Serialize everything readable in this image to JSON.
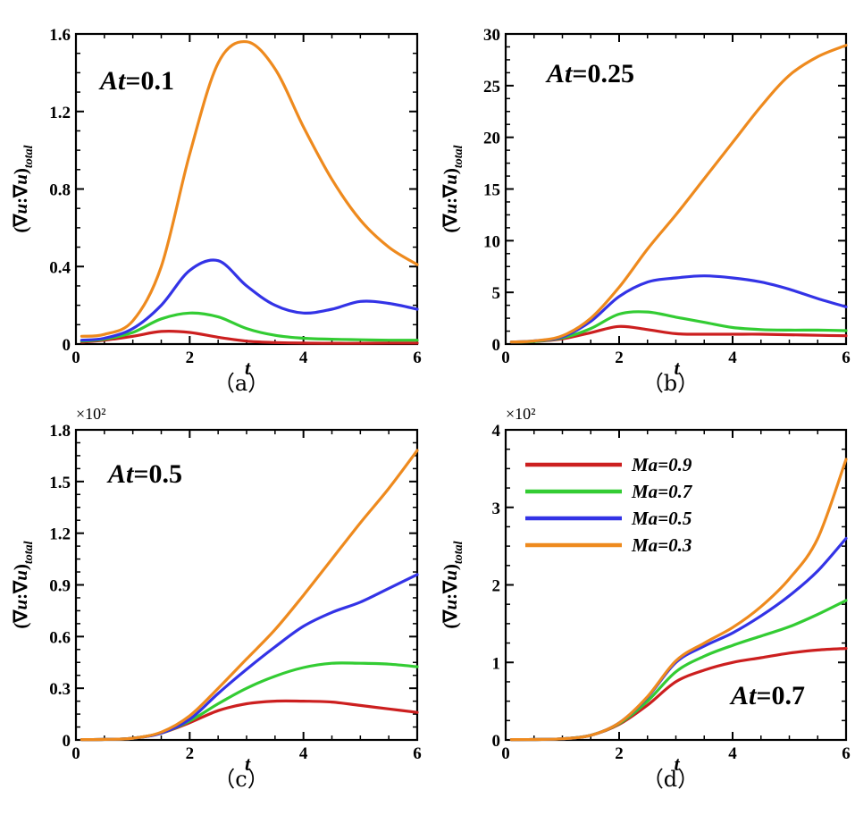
{
  "figure": {
    "x_symbol": "t",
    "y_label_prefix": "(∇",
    "y_label_u1": "u",
    "y_label_colon": ":∇",
    "y_label_u2": "u",
    "y_label_close": ")",
    "y_label_sub": "total"
  },
  "legend": {
    "entries": [
      {
        "label": "Ma=0.9",
        "color": "#cc1f1f"
      },
      {
        "label": "Ma=0.7",
        "color": "#33cc33"
      },
      {
        "label": "Ma=0.5",
        "color": "#3333e6"
      },
      {
        "label": "Ma=0.3",
        "color": "#ee8a1e"
      }
    ]
  },
  "chart_data": [
    {
      "type": "line",
      "panel_label": "（a）",
      "annotation_prefix": "At",
      "annotation_value": "=0.1",
      "multiplier": "",
      "xlim": [
        0,
        6
      ],
      "ylim": [
        0,
        1.6
      ],
      "xticks": [
        "0",
        "2",
        "4",
        "6"
      ],
      "yticks": [
        "0",
        "0.4",
        "0.8",
        "1.2",
        "1.6"
      ],
      "x": [
        0.1,
        0.5,
        1.0,
        1.5,
        2.0,
        2.5,
        3.0,
        3.5,
        4.0,
        4.5,
        5.0,
        5.5,
        6.0
      ],
      "series": [
        {
          "name": "Ma=0.9",
          "color": "#cc1f1f",
          "values": [
            0.01,
            0.02,
            0.04,
            0.065,
            0.06,
            0.035,
            0.015,
            0.008,
            0.005,
            0.004,
            0.004,
            0.005,
            0.005
          ]
        },
        {
          "name": "Ma=0.7",
          "color": "#33cc33",
          "values": [
            0.015,
            0.025,
            0.06,
            0.13,
            0.16,
            0.14,
            0.08,
            0.045,
            0.03,
            0.025,
            0.022,
            0.02,
            0.02
          ]
        },
        {
          "name": "Ma=0.5",
          "color": "#3333e6",
          "values": [
            0.02,
            0.03,
            0.08,
            0.2,
            0.38,
            0.43,
            0.3,
            0.2,
            0.16,
            0.18,
            0.22,
            0.21,
            0.18
          ]
        },
        {
          "name": "Ma=0.3",
          "color": "#ee8a1e",
          "values": [
            0.04,
            0.05,
            0.12,
            0.4,
            0.98,
            1.45,
            1.56,
            1.42,
            1.12,
            0.85,
            0.64,
            0.5,
            0.41
          ]
        }
      ]
    },
    {
      "type": "line",
      "panel_label": "（b）",
      "annotation_prefix": "At",
      "annotation_value": "=0.25",
      "multiplier": "",
      "xlim": [
        0,
        6
      ],
      "ylim": [
        0,
        30
      ],
      "xticks": [
        "0",
        "2",
        "4",
        "6"
      ],
      "yticks": [
        "0",
        "5",
        "10",
        "15",
        "20",
        "25",
        "30"
      ],
      "x": [
        0.1,
        0.5,
        1.0,
        1.5,
        2.0,
        2.5,
        3.0,
        3.5,
        4.0,
        4.5,
        5.0,
        5.5,
        6.0
      ],
      "series": [
        {
          "name": "Ma=0.9",
          "color": "#cc1f1f",
          "values": [
            0.2,
            0.25,
            0.5,
            1.1,
            1.7,
            1.4,
            1.0,
            0.95,
            0.95,
            0.95,
            0.9,
            0.85,
            0.8
          ]
        },
        {
          "name": "Ma=0.7",
          "color": "#33cc33",
          "values": [
            0.2,
            0.25,
            0.6,
            1.5,
            2.9,
            3.1,
            2.6,
            2.1,
            1.6,
            1.4,
            1.35,
            1.35,
            1.3
          ]
        },
        {
          "name": "Ma=0.5",
          "color": "#3333e6",
          "values": [
            0.2,
            0.3,
            0.7,
            2.2,
            4.6,
            6.0,
            6.4,
            6.6,
            6.4,
            6.0,
            5.3,
            4.4,
            3.6
          ]
        },
        {
          "name": "Ma=0.3",
          "color": "#ee8a1e",
          "values": [
            0.2,
            0.3,
            0.8,
            2.5,
            5.5,
            9.2,
            12.5,
            16.0,
            19.5,
            23.0,
            26.0,
            27.8,
            28.9
          ]
        }
      ]
    },
    {
      "type": "line",
      "panel_label": "（c）",
      "annotation_prefix": "At",
      "annotation_value": "=0.5",
      "multiplier": "×10²",
      "xlim": [
        0,
        6
      ],
      "ylim": [
        0,
        1.8
      ],
      "xticks": [
        "0",
        "2",
        "4",
        "6"
      ],
      "yticks": [
        "0",
        "0.3",
        "0.6",
        "0.9",
        "1.2",
        "1.5",
        "1.8"
      ],
      "x": [
        0.1,
        0.5,
        1.0,
        1.5,
        2.0,
        2.5,
        3.0,
        3.5,
        4.0,
        4.5,
        5.0,
        5.5,
        6.0
      ],
      "series": [
        {
          "name": "Ma=0.9",
          "color": "#cc1f1f",
          "values": [
            0.002,
            0.003,
            0.01,
            0.04,
            0.1,
            0.17,
            0.21,
            0.225,
            0.225,
            0.22,
            0.2,
            0.18,
            0.16
          ]
        },
        {
          "name": "Ma=0.7",
          "color": "#33cc33",
          "values": [
            0.002,
            0.003,
            0.01,
            0.04,
            0.11,
            0.21,
            0.3,
            0.37,
            0.42,
            0.445,
            0.445,
            0.44,
            0.425
          ]
        },
        {
          "name": "Ma=0.5",
          "color": "#3333e6",
          "values": [
            0.002,
            0.003,
            0.01,
            0.04,
            0.12,
            0.27,
            0.41,
            0.54,
            0.66,
            0.74,
            0.8,
            0.88,
            0.96
          ]
        },
        {
          "name": "Ma=0.3",
          "color": "#ee8a1e",
          "values": [
            0.002,
            0.003,
            0.01,
            0.045,
            0.14,
            0.3,
            0.47,
            0.64,
            0.84,
            1.05,
            1.26,
            1.46,
            1.68
          ]
        }
      ]
    },
    {
      "type": "line",
      "panel_label": "（d）",
      "annotation_prefix": "At",
      "annotation_value": "=0.7",
      "multiplier": "×10²",
      "xlim": [
        0,
        6
      ],
      "ylim": [
        0,
        4
      ],
      "xticks": [
        "0",
        "2",
        "4",
        "6"
      ],
      "yticks": [
        "0",
        "1",
        "2",
        "3",
        "4"
      ],
      "x": [
        0.1,
        0.5,
        1.0,
        1.5,
        2.0,
        2.5,
        3.0,
        3.5,
        4.0,
        4.5,
        5.0,
        5.5,
        6.0
      ],
      "series": [
        {
          "name": "Ma=0.9",
          "color": "#cc1f1f",
          "values": [
            0.005,
            0.006,
            0.015,
            0.06,
            0.2,
            0.45,
            0.75,
            0.9,
            1.0,
            1.06,
            1.12,
            1.16,
            1.18
          ]
        },
        {
          "name": "Ma=0.7",
          "color": "#33cc33",
          "values": [
            0.005,
            0.006,
            0.015,
            0.06,
            0.21,
            0.5,
            0.88,
            1.08,
            1.22,
            1.34,
            1.46,
            1.62,
            1.8
          ]
        },
        {
          "name": "Ma=0.5",
          "color": "#3333e6",
          "values": [
            0.005,
            0.006,
            0.015,
            0.06,
            0.22,
            0.55,
            1.0,
            1.21,
            1.38,
            1.6,
            1.86,
            2.18,
            2.6
          ]
        },
        {
          "name": "Ma=0.3",
          "color": "#ee8a1e",
          "values": [
            0.005,
            0.006,
            0.015,
            0.06,
            0.22,
            0.56,
            1.02,
            1.25,
            1.45,
            1.72,
            2.08,
            2.6,
            3.62
          ]
        }
      ]
    }
  ]
}
